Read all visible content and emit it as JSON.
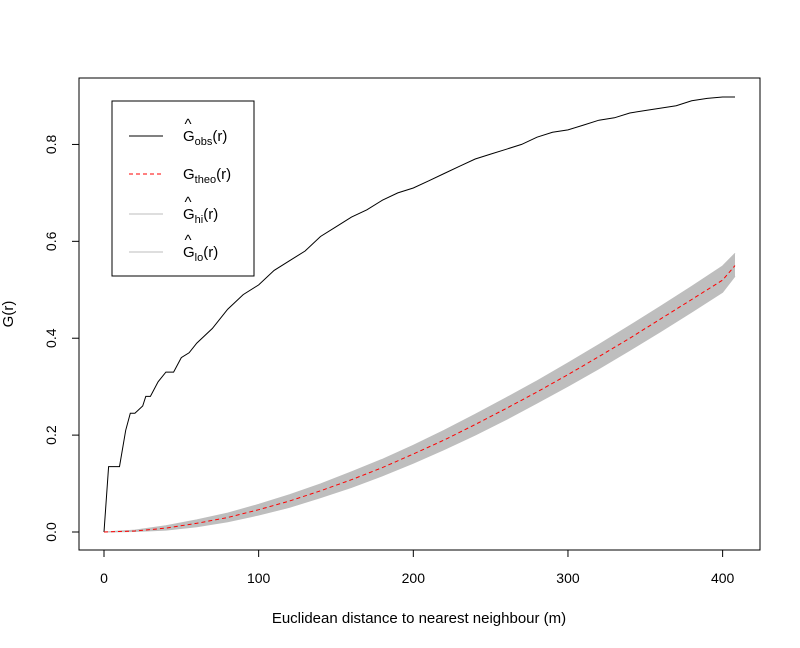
{
  "chart_data": {
    "type": "line",
    "title": "",
    "xlabel": "Euclidean distance to nearest neighbour (m)",
    "ylabel": "G(r)",
    "xlim": [
      0,
      408
    ],
    "ylim": [
      0,
      0.9
    ],
    "x_ticks": [
      0,
      100,
      200,
      300,
      400
    ],
    "x_tick_labels": [
      "0",
      "100",
      "200",
      "300",
      "400"
    ],
    "y_ticks": [
      0.0,
      0.2,
      0.4,
      0.6,
      0.8
    ],
    "y_tick_labels": [
      "0.0",
      "0.2",
      "0.4",
      "0.6",
      "0.8"
    ],
    "grid": false,
    "legend": {
      "position": "top-left",
      "entries": [
        {
          "series": "obs",
          "hat": "^",
          "base": "G",
          "sub": "obs",
          "suffix": "(r)"
        },
        {
          "series": "theo",
          "hat": "",
          "base": "G",
          "sub": "theo",
          "suffix": "(r)"
        },
        {
          "series": "hi",
          "hat": "^",
          "base": "G",
          "sub": "hi",
          "suffix": "(r)"
        },
        {
          "series": "lo",
          "hat": "^",
          "base": "G",
          "sub": "lo",
          "suffix": "(r)"
        }
      ]
    },
    "series": [
      {
        "key": "obs",
        "color": "#000000",
        "dash": "solid",
        "x": [
          0,
          3,
          10,
          14,
          17,
          20,
          25,
          27,
          30,
          35,
          40,
          45,
          50,
          55,
          60,
          70,
          80,
          90,
          100,
          110,
          120,
          130,
          140,
          150,
          160,
          170,
          180,
          190,
          200,
          210,
          220,
          230,
          240,
          250,
          260,
          270,
          280,
          290,
          300,
          310,
          320,
          330,
          340,
          350,
          360,
          370,
          380,
          390,
          400,
          408
        ],
        "y": [
          0.0,
          0.135,
          0.135,
          0.21,
          0.245,
          0.245,
          0.26,
          0.28,
          0.28,
          0.31,
          0.33,
          0.33,
          0.36,
          0.37,
          0.39,
          0.42,
          0.46,
          0.49,
          0.51,
          0.54,
          0.56,
          0.58,
          0.61,
          0.63,
          0.65,
          0.665,
          0.685,
          0.7,
          0.71,
          0.725,
          0.74,
          0.755,
          0.77,
          0.78,
          0.79,
          0.8,
          0.815,
          0.825,
          0.83,
          0.84,
          0.85,
          0.855,
          0.865,
          0.87,
          0.875,
          0.88,
          0.89,
          0.895,
          0.898,
          0.898
        ]
      },
      {
        "key": "theo",
        "color": "#ff0000",
        "dash": "dashed",
        "x": [
          0,
          20,
          40,
          60,
          80,
          100,
          120,
          140,
          160,
          180,
          200,
          220,
          240,
          260,
          280,
          300,
          320,
          340,
          360,
          380,
          400,
          408
        ],
        "y": [
          0.0,
          0.002,
          0.008,
          0.018,
          0.03,
          0.046,
          0.064,
          0.085,
          0.108,
          0.133,
          0.161,
          0.19,
          0.222,
          0.255,
          0.289,
          0.325,
          0.362,
          0.4,
          0.44,
          0.48,
          0.52,
          0.55
        ]
      },
      {
        "key": "hi",
        "color": "#bebebe",
        "dash": "solid",
        "x": [
          0,
          20,
          40,
          60,
          80,
          100,
          120,
          140,
          160,
          180,
          200,
          220,
          240,
          260,
          280,
          300,
          320,
          340,
          360,
          380,
          400,
          408
        ],
        "y": [
          0.0,
          0.004,
          0.013,
          0.025,
          0.039,
          0.057,
          0.077,
          0.099,
          0.124,
          0.15,
          0.179,
          0.21,
          0.243,
          0.277,
          0.312,
          0.349,
          0.387,
          0.426,
          0.466,
          0.507,
          0.549,
          0.575
        ]
      },
      {
        "key": "lo",
        "color": "#bebebe",
        "dash": "solid",
        "x": [
          0,
          20,
          40,
          60,
          80,
          100,
          120,
          140,
          160,
          180,
          200,
          220,
          240,
          260,
          280,
          300,
          320,
          340,
          360,
          380,
          400,
          408
        ],
        "y": [
          0.0,
          0.001,
          0.004,
          0.011,
          0.021,
          0.035,
          0.051,
          0.071,
          0.092,
          0.116,
          0.142,
          0.17,
          0.2,
          0.232,
          0.266,
          0.301,
          0.337,
          0.375,
          0.414,
          0.454,
          0.495,
          0.528
        ]
      }
    ]
  }
}
